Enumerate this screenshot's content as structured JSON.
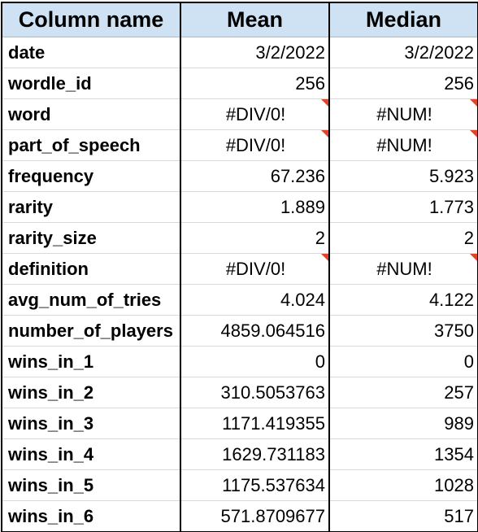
{
  "table": {
    "headers": [
      "Column name",
      "Mean",
      "Median"
    ],
    "rows": [
      {
        "name": "date",
        "mean": "3/2/2022",
        "median": "3/2/2022",
        "error": false
      },
      {
        "name": "wordle_id",
        "mean": "256",
        "median": "256",
        "error": false
      },
      {
        "name": "word",
        "mean": "#DIV/0!",
        "median": "#NUM!",
        "error": true
      },
      {
        "name": "part_of_speech",
        "mean": "#DIV/0!",
        "median": "#NUM!",
        "error": true
      },
      {
        "name": "frequency",
        "mean": "67.236",
        "median": "5.923",
        "error": false
      },
      {
        "name": "rarity",
        "mean": "1.889",
        "median": "1.773",
        "error": false
      },
      {
        "name": "rarity_size",
        "mean": "2",
        "median": "2",
        "error": false
      },
      {
        "name": "definition",
        "mean": "#DIV/0!",
        "median": "#NUM!",
        "error": true
      },
      {
        "name": "avg_num_of_tries",
        "mean": "4.024",
        "median": "4.122",
        "error": false
      },
      {
        "name": "number_of_players",
        "mean": "4859.064516",
        "median": "3750",
        "error": false
      },
      {
        "name": "wins_in_1",
        "mean": "0",
        "median": "0",
        "error": false
      },
      {
        "name": "wins_in_2",
        "mean": "310.5053763",
        "median": "257",
        "error": false
      },
      {
        "name": "wins_in_3",
        "mean": "1171.419355",
        "median": "989",
        "error": false
      },
      {
        "name": "wins_in_4",
        "mean": "1629.731183",
        "median": "1354",
        "error": false
      },
      {
        "name": "wins_in_5",
        "mean": "1175.537634",
        "median": "1028",
        "error": false
      },
      {
        "name": "wins_in_6",
        "mean": "571.8709677",
        "median": "517",
        "error": false
      }
    ]
  },
  "colors": {
    "header_bg": "#cfe2f3",
    "error_flag": "#e0452b",
    "grid": "#d9d9d9",
    "border": "#000000"
  }
}
